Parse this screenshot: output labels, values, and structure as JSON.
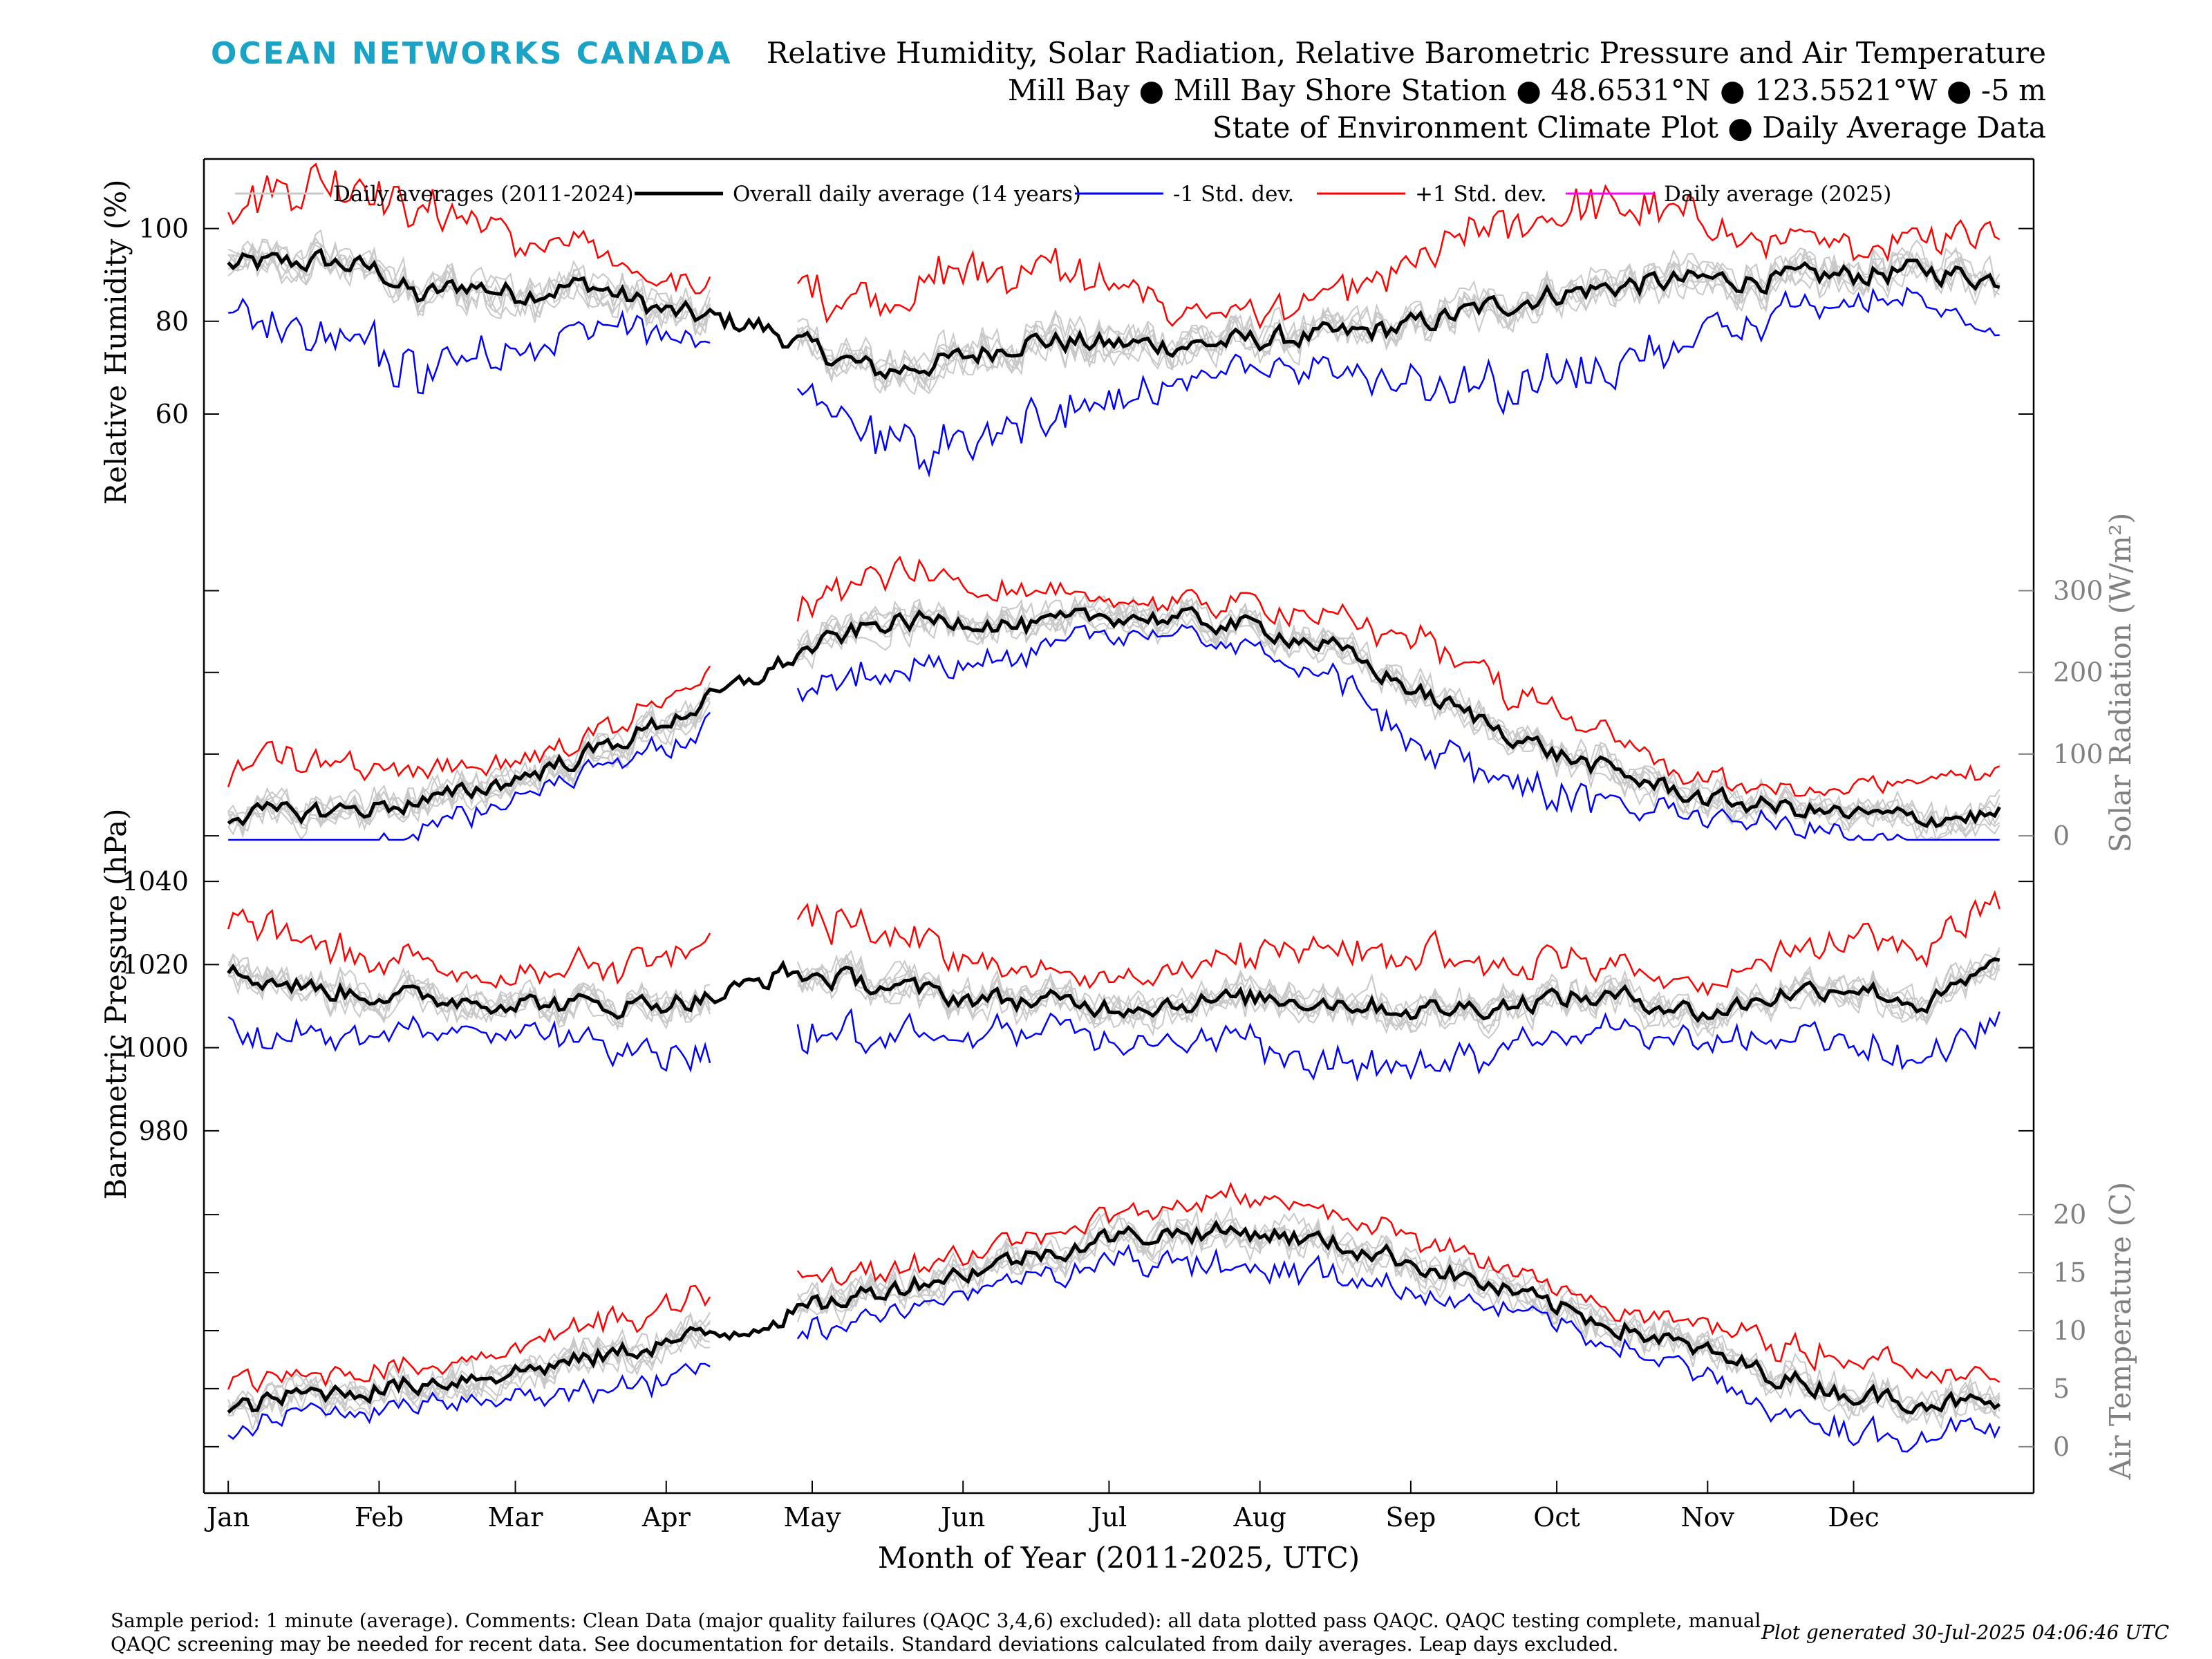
{
  "header": {
    "logo": "OCEAN NETWORKS CANADA",
    "title1": "Relative Humidity, Solar Radiation, Relative Barometric Pressure and Air Temperature",
    "title2": "Mill Bay ● Mill Bay Shore Station ● 48.6531°N ● 123.5521°W ● -5 m",
    "title3": "State of Environment Climate Plot ● Daily Average Data"
  },
  "footer": {
    "line1": "Sample period: 1 minute (average). Comments: Clean Data (major quality failures (QAQC 3,4,6) excluded): all data plotted pass QAQC. QAQC testing complete, manual",
    "line2": "QAQC screening may be needed for recent data. See documentation for details. Standard deviations calculated from daily averages. Leap days excluded.",
    "generated": "Plot generated 30-Jul-2025 04:06:46 UTC"
  },
  "colors": {
    "history": "#c8c8c8",
    "mean": "#000000",
    "minus_std": "#0000ff",
    "plus_std": "#ff0000",
    "current": "#ff00ff",
    "right_axis": "#808080"
  },
  "chart_data": {
    "type": "line",
    "xlabel": "Month of Year (2011-2025, UTC)",
    "x_ticks": [
      "Jan",
      "Feb",
      "Mar",
      "Apr",
      "May",
      "Jun",
      "Jul",
      "Aug",
      "Sep",
      "Oct",
      "Nov",
      "Dec"
    ],
    "x_tick_days": [
      1,
      32,
      60,
      91,
      121,
      152,
      182,
      213,
      244,
      274,
      305,
      335
    ],
    "xlim": [
      -4,
      372
    ],
    "legend": {
      "placement": "top",
      "entries": [
        {
          "key": "history",
          "label": "Daily averages (2011-2024)"
        },
        {
          "key": "mean",
          "label": "Overall daily average (14 years)"
        },
        {
          "key": "minus_std",
          "label": "-1 Std. dev."
        },
        {
          "key": "plus_std",
          "label": "+1 Std. dev."
        },
        {
          "key": "current",
          "label": "Daily average (2025)"
        }
      ]
    },
    "panels": [
      {
        "id": "humidity",
        "ylabel": "Relative Humidity (%)",
        "axis_side": "left",
        "ylim": [
          36,
          115
        ],
        "ticks": [
          60,
          80,
          100
        ],
        "mean_knots": [
          [
            1,
            92
          ],
          [
            20,
            93
          ],
          [
            32,
            91
          ],
          [
            40,
            85
          ],
          [
            50,
            88
          ],
          [
            60,
            86
          ],
          [
            75,
            88
          ],
          [
            91,
            82
          ],
          [
            110,
            79
          ],
          [
            121,
            74
          ],
          [
            135,
            69
          ],
          [
            152,
            72
          ],
          [
            165,
            76
          ],
          [
            182,
            75
          ],
          [
            200,
            75
          ],
          [
            213,
            76
          ],
          [
            230,
            77
          ],
          [
            244,
            79
          ],
          [
            260,
            83
          ],
          [
            274,
            86
          ],
          [
            290,
            88
          ],
          [
            305,
            89
          ],
          [
            320,
            89
          ],
          [
            335,
            90
          ],
          [
            350,
            91
          ],
          [
            365,
            89
          ]
        ],
        "spread": [
          6,
          18
        ],
        "gaps": [
          [
            101,
            117
          ]
        ]
      },
      {
        "id": "solar",
        "ylabel": "Solar Radiation (W/m²)",
        "axis_side": "right",
        "ylim": [
          -5,
          380
        ],
        "ticks": [
          0,
          100,
          200,
          300
        ],
        "mean_knots": [
          [
            1,
            25
          ],
          [
            20,
            30
          ],
          [
            32,
            35
          ],
          [
            45,
            45
          ],
          [
            60,
            70
          ],
          [
            75,
            100
          ],
          [
            91,
            140
          ],
          [
            105,
            180
          ],
          [
            121,
            230
          ],
          [
            135,
            260
          ],
          [
            152,
            265
          ],
          [
            166,
            255
          ],
          [
            182,
            270
          ],
          [
            197,
            265
          ],
          [
            213,
            255
          ],
          [
            228,
            230
          ],
          [
            244,
            180
          ],
          [
            259,
            140
          ],
          [
            274,
            100
          ],
          [
            290,
            70
          ],
          [
            305,
            45
          ],
          [
            320,
            35
          ],
          [
            335,
            25
          ],
          [
            350,
            22
          ],
          [
            365,
            25
          ]
        ],
        "spread": [
          20,
          60
        ],
        "gaps": [
          [
            101,
            117
          ]
        ]
      },
      {
        "id": "pressure",
        "ylabel": "Barometric Pressure (hPa)",
        "axis_side": "left",
        "ylim": [
          971,
          1050
        ],
        "ticks": [
          980,
          1000,
          1020,
          1040
        ],
        "mean_knots": [
          [
            1,
            1018
          ],
          [
            20,
            1014
          ],
          [
            40,
            1012
          ],
          [
            60,
            1011
          ],
          [
            80,
            1010
          ],
          [
            101,
            1012
          ],
          [
            115,
            1018
          ],
          [
            130,
            1016
          ],
          [
            152,
            1012
          ],
          [
            170,
            1011
          ],
          [
            182,
            1010
          ],
          [
            200,
            1011
          ],
          [
            213,
            1012
          ],
          [
            230,
            1011
          ],
          [
            244,
            1009
          ],
          [
            260,
            1010
          ],
          [
            274,
            1012
          ],
          [
            290,
            1012
          ],
          [
            305,
            1008
          ],
          [
            320,
            1013
          ],
          [
            335,
            1015
          ],
          [
            350,
            1010
          ],
          [
            365,
            1020
          ]
        ],
        "spread": [
          7,
          14
        ],
        "gaps": [
          [
            101,
            117
          ]
        ]
      },
      {
        "id": "temperature",
        "ylabel": "Air Temperature (C)",
        "axis_side": "right",
        "ylim": [
          -4,
          24
        ],
        "ticks": [
          0,
          5,
          10,
          15,
          20
        ],
        "mean_knots": [
          [
            1,
            3
          ],
          [
            15,
            4.5
          ],
          [
            32,
            5
          ],
          [
            50,
            6
          ],
          [
            60,
            6.5
          ],
          [
            75,
            7.5
          ],
          [
            91,
            9
          ],
          [
            105,
            10
          ],
          [
            121,
            12
          ],
          [
            135,
            13.5
          ],
          [
            152,
            15
          ],
          [
            166,
            16.5
          ],
          [
            182,
            18
          ],
          [
            197,
            18.5
          ],
          [
            213,
            18.5
          ],
          [
            228,
            17.5
          ],
          [
            244,
            16
          ],
          [
            259,
            14
          ],
          [
            274,
            12
          ],
          [
            290,
            10
          ],
          [
            305,
            8
          ],
          [
            320,
            6
          ],
          [
            335,
            4.5
          ],
          [
            350,
            4
          ],
          [
            365,
            3.5
          ]
        ],
        "spread": [
          1.5,
          3
        ],
        "gaps": [
          [
            101,
            117
          ]
        ]
      }
    ]
  }
}
